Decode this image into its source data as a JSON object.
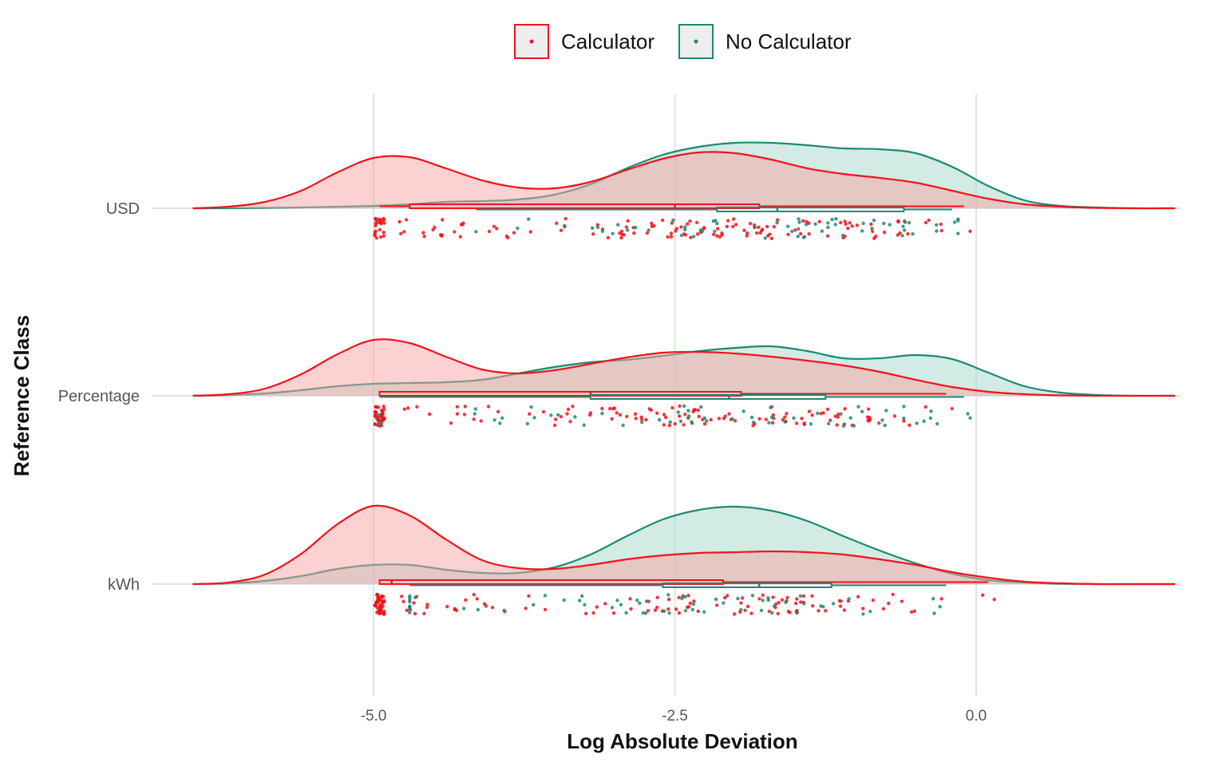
{
  "chart_data": {
    "type": "raincloud",
    "title": "",
    "xlabel": "Log Absolute Deviation",
    "ylabel": "Reference Class",
    "xlim": [
      -6.5,
      1.65
    ],
    "x_ticks": [
      -5.0,
      -2.5,
      0.0
    ],
    "x_tick_labels": [
      "-5.0",
      "-2.5",
      "0.0"
    ],
    "categories": [
      "USD",
      "Percentage",
      "kWh"
    ],
    "grid": true,
    "legend_position": "top",
    "series": [
      {
        "name": "Calculator",
        "color": "#f2121b",
        "fill": "#f8a4a4",
        "density": {
          "x": [
            -6.5,
            -6.2,
            -5.9,
            -5.6,
            -5.3,
            -5.0,
            -4.7,
            -4.4,
            -4.1,
            -3.8,
            -3.5,
            -3.2,
            -2.9,
            -2.6,
            -2.3,
            -2.0,
            -1.7,
            -1.4,
            -1.1,
            -0.8,
            -0.5,
            -0.2,
            0.1,
            0.4,
            0.7,
            1.0,
            1.3,
            1.65
          ],
          "USD": [
            0.0,
            0.02,
            0.08,
            0.22,
            0.45,
            0.63,
            0.64,
            0.5,
            0.35,
            0.26,
            0.25,
            0.33,
            0.48,
            0.62,
            0.7,
            0.69,
            0.61,
            0.5,
            0.43,
            0.38,
            0.32,
            0.22,
            0.12,
            0.05,
            0.02,
            0.005,
            0.0,
            0.0
          ],
          "Percentage": [
            0.0,
            0.02,
            0.09,
            0.27,
            0.52,
            0.7,
            0.66,
            0.49,
            0.33,
            0.28,
            0.32,
            0.4,
            0.48,
            0.54,
            0.55,
            0.53,
            0.49,
            0.44,
            0.38,
            0.3,
            0.2,
            0.11,
            0.05,
            0.02,
            0.005,
            0.0,
            0.0,
            0.0
          ],
          "kWh": [
            0.0,
            0.02,
            0.12,
            0.38,
            0.75,
            0.98,
            0.86,
            0.56,
            0.3,
            0.2,
            0.19,
            0.24,
            0.31,
            0.36,
            0.39,
            0.4,
            0.41,
            0.4,
            0.37,
            0.31,
            0.24,
            0.15,
            0.08,
            0.03,
            0.01,
            0.0,
            0.0,
            0.0
          ]
        },
        "box": {
          "USD": {
            "whisker_low": -4.95,
            "q1": -4.7,
            "median": -2.5,
            "q3": -1.8,
            "whisker_high": -0.1
          },
          "Percentage": {
            "whisker_low": -4.95,
            "q1": -4.95,
            "median": -3.2,
            "q3": -1.95,
            "whisker_high": -0.25
          },
          "kWh": {
            "whisker_low": -4.95,
            "q1": -4.95,
            "median": -4.85,
            "q3": -2.1,
            "whisker_high": 0.1
          }
        }
      },
      {
        "name": "No Calculator",
        "color": "#1b8a72",
        "fill": "#a5d8ca",
        "density": {
          "x": [
            -6.5,
            -6.2,
            -5.9,
            -5.6,
            -5.3,
            -5.0,
            -4.7,
            -4.4,
            -4.1,
            -3.8,
            -3.5,
            -3.2,
            -2.9,
            -2.6,
            -2.3,
            -2.0,
            -1.7,
            -1.4,
            -1.1,
            -0.8,
            -0.5,
            -0.2,
            0.1,
            0.4,
            0.7,
            1.0,
            1.3,
            1.65
          ],
          "USD": [
            0.0,
            0.0,
            0.005,
            0.01,
            0.02,
            0.03,
            0.05,
            0.08,
            0.09,
            0.11,
            0.17,
            0.3,
            0.5,
            0.67,
            0.77,
            0.82,
            0.82,
            0.79,
            0.75,
            0.74,
            0.69,
            0.52,
            0.28,
            0.1,
            0.03,
            0.01,
            0.0,
            0.0
          ],
          "Percentage": [
            0.0,
            0.01,
            0.03,
            0.07,
            0.12,
            0.15,
            0.16,
            0.17,
            0.2,
            0.28,
            0.36,
            0.42,
            0.45,
            0.5,
            0.56,
            0.6,
            0.62,
            0.56,
            0.47,
            0.47,
            0.51,
            0.46,
            0.29,
            0.12,
            0.04,
            0.01,
            0.0,
            0.0
          ],
          "kWh": [
            0.0,
            0.01,
            0.04,
            0.1,
            0.19,
            0.24,
            0.24,
            0.18,
            0.14,
            0.14,
            0.21,
            0.37,
            0.6,
            0.81,
            0.93,
            0.97,
            0.92,
            0.79,
            0.6,
            0.42,
            0.26,
            0.13,
            0.05,
            0.02,
            0.005,
            0.0,
            0.0,
            0.0
          ]
        },
        "box": {
          "USD": {
            "whisker_low": -4.15,
            "q1": -2.15,
            "median": -1.65,
            "q3": -0.6,
            "whisker_high": -0.2
          },
          "Percentage": {
            "whisker_low": -4.95,
            "q1": -3.2,
            "median": -2.05,
            "q3": -1.25,
            "whisker_high": -0.1
          },
          "kWh": {
            "whisker_low": -4.7,
            "q1": -2.6,
            "median": -1.8,
            "q3": -1.2,
            "whisker_high": -0.25
          }
        }
      }
    ]
  }
}
